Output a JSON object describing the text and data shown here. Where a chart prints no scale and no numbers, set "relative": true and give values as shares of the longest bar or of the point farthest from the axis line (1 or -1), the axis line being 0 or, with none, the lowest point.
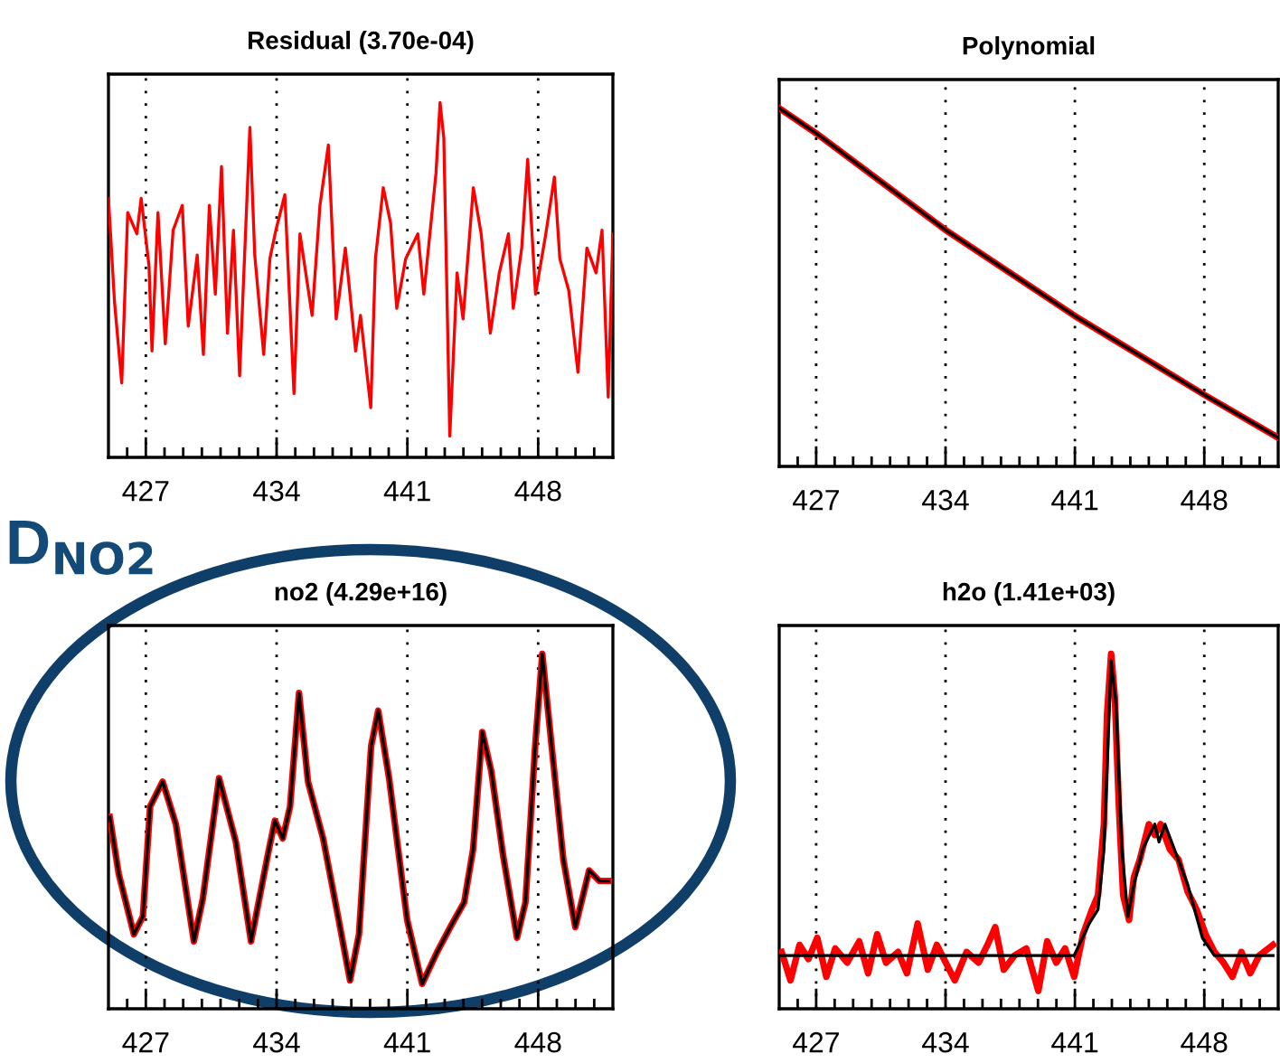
{
  "chart_data": [
    {
      "type": "line",
      "title": "Residual (3.70e-04)",
      "relative": true,
      "xlim": [
        425,
        452
      ],
      "xticks": [
        {
          "value": 426,
          "label": null
        },
        427,
        {
          "value": 428,
          "label": null
        },
        {
          "value": 429,
          "label": null
        },
        {
          "value": 430,
          "label": null
        },
        {
          "value": 431,
          "label": null
        },
        {
          "value": 432,
          "label": null
        },
        {
          "value": 433,
          "label": null
        },
        434,
        {
          "value": 435,
          "label": null
        },
        {
          "value": 436,
          "label": null
        },
        {
          "value": 437,
          "label": null
        },
        {
          "value": 438,
          "label": null
        },
        {
          "value": 439,
          "label": null
        },
        {
          "value": 440,
          "label": null
        },
        441,
        {
          "value": 442,
          "label": null
        },
        {
          "value": 443,
          "label": null
        },
        {
          "value": 444,
          "label": null
        },
        {
          "value": 445,
          "label": null
        },
        {
          "value": 446,
          "label": null
        },
        {
          "value": 447,
          "label": null
        },
        448,
        {
          "value": 449,
          "label": null
        },
        {
          "value": 450,
          "label": null
        },
        {
          "value": 451,
          "label": null
        }
      ],
      "grid": "x",
      "tick_labels": "x",
      "line_style": "solid",
      "marker": "none",
      "series": [
        {
          "color": "#ff0000",
          "x": [
            425.0,
            425.32,
            425.71,
            426.03,
            426.52,
            426.75,
            427.17,
            427.33,
            427.65,
            428.04,
            428.46,
            428.95,
            429.27,
            429.75,
            430.08,
            430.4,
            430.72,
            431.05,
            431.37,
            431.69,
            432.02,
            432.57,
            432.83,
            433.31,
            433.64,
            433.96,
            434.44,
            434.93,
            435.25,
            435.9,
            436.32,
            436.77,
            437.19,
            437.68,
            438.23,
            438.49,
            439.04,
            439.29,
            439.71,
            440.1,
            440.43,
            440.91,
            441.56,
            441.88,
            442.53,
            442.75,
            442.95,
            443.27,
            443.66,
            443.98,
            444.53,
            444.95,
            445.44,
            445.92,
            446.41,
            446.67,
            447.12,
            447.44,
            447.86,
            448.41,
            448.87,
            449.16,
            449.64,
            450.13,
            450.61,
            451.1,
            451.42,
            451.75,
            452.0
          ],
          "values": [
            0.73,
            0.44,
            0.21,
            0.69,
            0.63,
            0.73,
            0.54,
            0.3,
            0.69,
            0.32,
            0.64,
            0.71,
            0.37,
            0.57,
            0.29,
            0.71,
            0.46,
            0.82,
            0.35,
            0.64,
            0.23,
            0.93,
            0.57,
            0.29,
            0.56,
            0.64,
            0.74,
            0.18,
            0.63,
            0.4,
            0.71,
            0.88,
            0.39,
            0.59,
            0.3,
            0.4,
            0.14,
            0.56,
            0.76,
            0.66,
            0.42,
            0.56,
            0.63,
            0.46,
            0.8,
            1.0,
            0.9,
            0.06,
            0.52,
            0.39,
            0.76,
            0.63,
            0.35,
            0.52,
            0.63,
            0.42,
            0.59,
            0.84,
            0.46,
            0.63,
            0.79,
            0.56,
            0.47,
            0.24,
            0.59,
            0.52,
            0.64,
            0.17,
            0.63
          ]
        }
      ]
    },
    {
      "type": "line",
      "title": "Polynomial",
      "relative": true,
      "xlim": [
        425,
        452
      ],
      "xticks": [
        {
          "value": 426,
          "label": null
        },
        427,
        {
          "value": 428,
          "label": null
        },
        {
          "value": 429,
          "label": null
        },
        {
          "value": 430,
          "label": null
        },
        {
          "value": 431,
          "label": null
        },
        {
          "value": 432,
          "label": null
        },
        {
          "value": 433,
          "label": null
        },
        434,
        {
          "value": 435,
          "label": null
        },
        {
          "value": 436,
          "label": null
        },
        {
          "value": 437,
          "label": null
        },
        {
          "value": 438,
          "label": null
        },
        {
          "value": 439,
          "label": null
        },
        {
          "value": 440,
          "label": null
        },
        441,
        {
          "value": 442,
          "label": null
        },
        {
          "value": 443,
          "label": null
        },
        {
          "value": 444,
          "label": null
        },
        {
          "value": 445,
          "label": null
        },
        {
          "value": 446,
          "label": null
        },
        {
          "value": 447,
          "label": null
        },
        448,
        {
          "value": 449,
          "label": null
        },
        {
          "value": 450,
          "label": null
        },
        {
          "value": 451,
          "label": null
        }
      ],
      "grid": "x",
      "tick_labels": "x",
      "line_style": "solid",
      "marker": "none",
      "series": [
        {
          "color": "#ff0000",
          "x": [
            425,
            427,
            434,
            441,
            448,
            452
          ],
          "values": [
            1.0,
            0.93,
            0.66,
            0.42,
            0.2,
            0.08
          ]
        },
        {
          "color": "#000000",
          "x": [
            425,
            427,
            434,
            441,
            448,
            452
          ],
          "values": [
            1.0,
            0.93,
            0.66,
            0.42,
            0.2,
            0.08
          ]
        }
      ]
    },
    {
      "type": "line",
      "title": "no2 (4.29e+16)",
      "relative": true,
      "xlim": [
        425,
        452
      ],
      "xticks": [
        {
          "value": 426,
          "label": null
        },
        427,
        {
          "value": 428,
          "label": null
        },
        {
          "value": 429,
          "label": null
        },
        {
          "value": 430,
          "label": null
        },
        {
          "value": 431,
          "label": null
        },
        {
          "value": 432,
          "label": null
        },
        {
          "value": 433,
          "label": null
        },
        434,
        {
          "value": 435,
          "label": null
        },
        {
          "value": 436,
          "label": null
        },
        {
          "value": 437,
          "label": null
        },
        {
          "value": 438,
          "label": null
        },
        {
          "value": 439,
          "label": null
        },
        {
          "value": 440,
          "label": null
        },
        441,
        {
          "value": 442,
          "label": null
        },
        {
          "value": 443,
          "label": null
        },
        {
          "value": 444,
          "label": null
        },
        {
          "value": 445,
          "label": null
        },
        {
          "value": 446,
          "label": null
        },
        {
          "value": 447,
          "label": null
        },
        448,
        {
          "value": 449,
          "label": null
        },
        {
          "value": 450,
          "label": null
        },
        {
          "value": 451,
          "label": null
        }
      ],
      "grid": "x",
      "tick_labels": "x",
      "line_style": "solid",
      "marker": "none",
      "annotations": [
        "D$_{NO2}$"
      ],
      "series": [
        {
          "color": "#ff0000",
          "x": [
            425.07,
            425.55,
            426.36,
            426.84,
            427.23,
            427.9,
            428.61,
            429.57,
            430.05,
            430.92,
            431.82,
            432.63,
            433.59,
            433.91,
            434.33,
            434.72,
            435.2,
            435.68,
            436.49,
            437.29,
            437.93,
            438.41,
            439.06,
            439.44,
            440.02,
            440.99,
            441.79,
            442.59,
            443.4,
            444.04,
            444.52,
            445.01,
            445.49,
            446.13,
            446.87,
            447.32,
            447.84,
            448.22,
            448.8,
            449.35,
            449.99,
            450.73,
            451.28,
            451.76
          ],
          "values": [
            0.54,
            0.38,
            0.21,
            0.26,
            0.57,
            0.64,
            0.52,
            0.19,
            0.31,
            0.65,
            0.47,
            0.19,
            0.45,
            0.53,
            0.48,
            0.57,
            0.89,
            0.64,
            0.48,
            0.26,
            0.08,
            0.21,
            0.74,
            0.84,
            0.65,
            0.25,
            0.07,
            0.16,
            0.24,
            0.3,
            0.45,
            0.78,
            0.67,
            0.43,
            0.2,
            0.3,
            0.74,
            1.0,
            0.7,
            0.42,
            0.23,
            0.39,
            0.36,
            0.36
          ]
        },
        {
          "color": "#000000",
          "x": [
            425.07,
            425.55,
            426.36,
            426.84,
            427.23,
            427.9,
            428.61,
            429.57,
            430.05,
            430.92,
            431.82,
            432.63,
            433.59,
            433.91,
            434.33,
            434.72,
            435.2,
            435.68,
            436.49,
            437.29,
            437.93,
            438.41,
            439.06,
            439.44,
            440.02,
            440.99,
            441.79,
            442.59,
            443.4,
            444.04,
            444.52,
            445.01,
            445.49,
            446.13,
            446.87,
            447.32,
            447.84,
            448.22,
            448.8,
            449.35,
            449.99,
            450.73,
            451.28,
            451.76
          ],
          "values": [
            0.54,
            0.38,
            0.21,
            0.26,
            0.57,
            0.64,
            0.52,
            0.19,
            0.31,
            0.65,
            0.47,
            0.19,
            0.45,
            0.53,
            0.48,
            0.57,
            0.89,
            0.64,
            0.48,
            0.26,
            0.08,
            0.21,
            0.74,
            0.84,
            0.65,
            0.25,
            0.07,
            0.16,
            0.24,
            0.3,
            0.45,
            0.78,
            0.67,
            0.43,
            0.2,
            0.3,
            0.74,
            1.0,
            0.7,
            0.42,
            0.23,
            0.39,
            0.36,
            0.36
          ]
        }
      ]
    },
    {
      "type": "line",
      "title": "h2o (1.41e+03)",
      "relative": true,
      "xlim": [
        425,
        452
      ],
      "xticks": [
        {
          "value": 426,
          "label": null
        },
        427,
        {
          "value": 428,
          "label": null
        },
        {
          "value": 429,
          "label": null
        },
        {
          "value": 430,
          "label": null
        },
        {
          "value": 431,
          "label": null
        },
        {
          "value": 432,
          "label": null
        },
        {
          "value": 433,
          "label": null
        },
        434,
        {
          "value": 435,
          "label": null
        },
        {
          "value": 436,
          "label": null
        },
        {
          "value": 437,
          "label": null
        },
        {
          "value": 438,
          "label": null
        },
        {
          "value": 439,
          "label": null
        },
        {
          "value": 440,
          "label": null
        },
        441,
        {
          "value": 442,
          "label": null
        },
        {
          "value": 443,
          "label": null
        },
        {
          "value": 444,
          "label": null
        },
        {
          "value": 445,
          "label": null
        },
        {
          "value": 446,
          "label": null
        },
        {
          "value": 447,
          "label": null
        },
        448,
        {
          "value": 449,
          "label": null
        },
        {
          "value": 450,
          "label": null
        },
        {
          "value": 451,
          "label": null
        }
      ],
      "grid": "x",
      "tick_labels": "x",
      "line_style": "solid",
      "marker": "none",
      "series": [
        {
          "color": "#ff0000",
          "x": [
            425.13,
            425.61,
            426.1,
            426.58,
            427.06,
            427.55,
            428.03,
            428.68,
            429.33,
            429.81,
            430.3,
            430.78,
            431.43,
            431.91,
            432.49,
            433.04,
            433.53,
            434.01,
            434.5,
            435.14,
            435.79,
            436.27,
            436.69,
            437.15,
            437.73,
            438.37,
            439.02,
            439.5,
            439.99,
            440.47,
            440.96,
            441.44,
            441.93,
            442.25,
            442.57,
            442.74,
            442.96,
            443.16,
            443.38,
            443.61,
            443.93,
            444.19,
            444.51,
            445.0,
            445.32,
            445.64,
            446.13,
            446.61,
            447.1,
            447.58,
            448.07,
            448.55,
            449.04,
            449.52,
            450.01,
            450.49,
            450.97,
            451.72
          ],
          "values": [
            0.16,
            0.08,
            0.18,
            0.14,
            0.2,
            0.09,
            0.17,
            0.13,
            0.19,
            0.1,
            0.21,
            0.13,
            0.16,
            0.1,
            0.24,
            0.11,
            0.18,
            0.13,
            0.08,
            0.16,
            0.13,
            0.18,
            0.23,
            0.11,
            0.15,
            0.17,
            0.05,
            0.19,
            0.13,
            0.17,
            0.09,
            0.21,
            0.28,
            0.32,
            0.52,
            0.83,
            1.0,
            0.88,
            0.57,
            0.32,
            0.25,
            0.37,
            0.42,
            0.52,
            0.49,
            0.52,
            0.45,
            0.42,
            0.33,
            0.28,
            0.21,
            0.16,
            0.13,
            0.09,
            0.16,
            0.1,
            0.15,
            0.18
          ]
        },
        {
          "color": "#000000",
          "x": [
            425.0,
            440.96,
            441.77,
            442.25,
            442.57,
            442.96,
            443.22,
            443.54,
            443.87,
            444.19,
            444.67,
            445.32,
            445.55,
            445.87,
            446.45,
            447.1,
            447.9,
            448.55,
            451.72
          ],
          "values": [
            0.15,
            0.15,
            0.24,
            0.28,
            0.45,
            0.98,
            0.86,
            0.45,
            0.26,
            0.35,
            0.45,
            0.52,
            0.47,
            0.52,
            0.44,
            0.35,
            0.2,
            0.15,
            0.15
          ]
        }
      ]
    }
  ]
}
